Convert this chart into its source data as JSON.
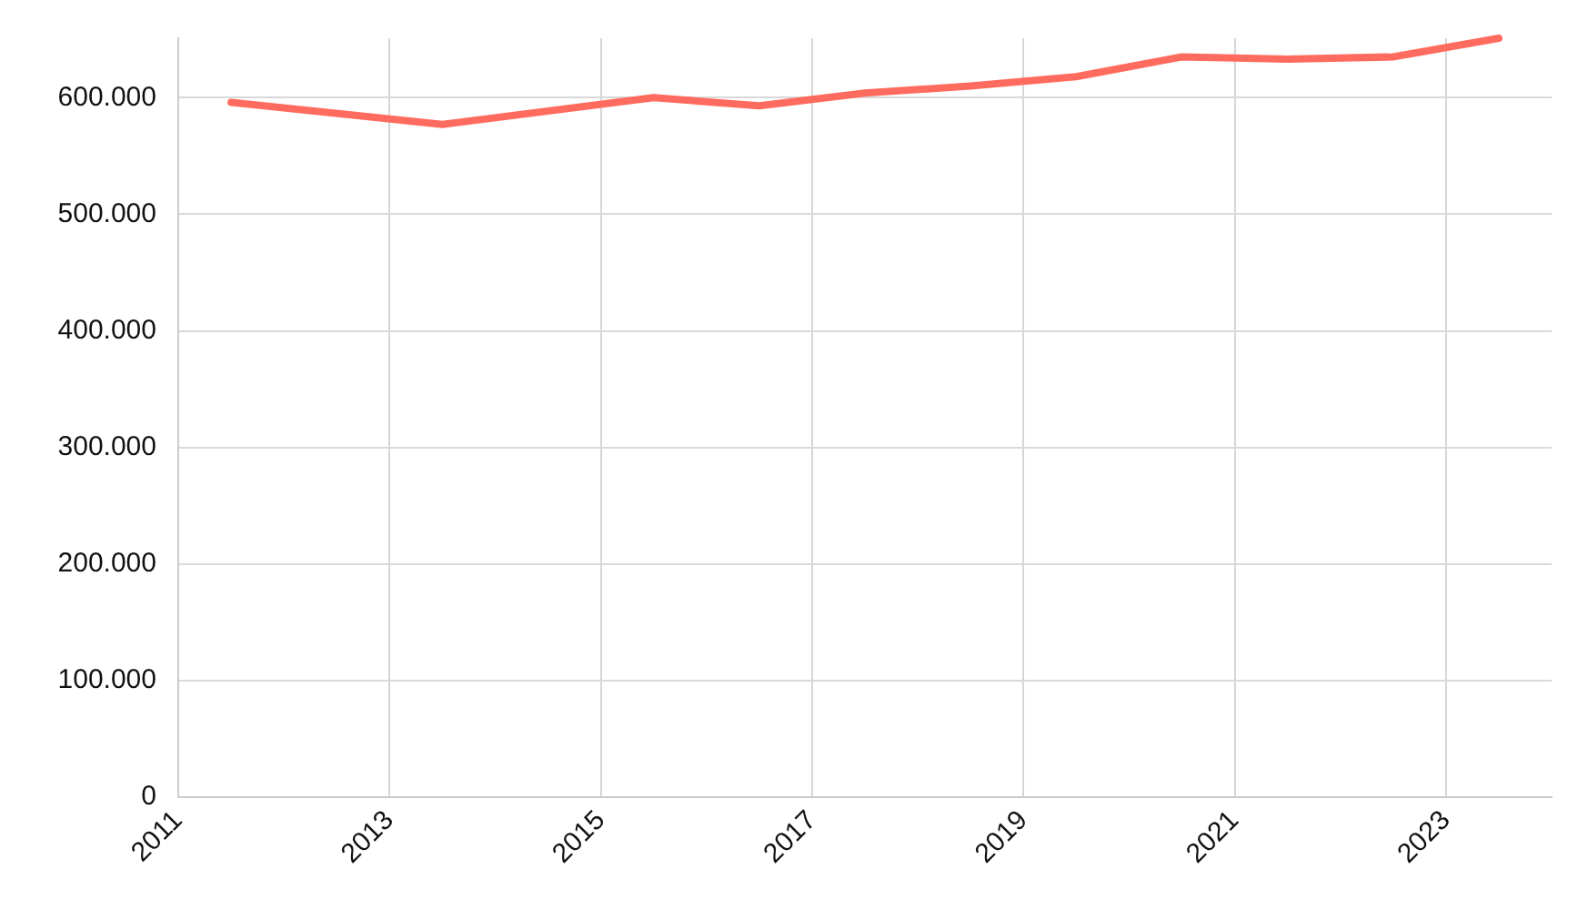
{
  "chart_data": {
    "type": "line",
    "x": [
      2011.5,
      2013.5,
      2015.5,
      2016.5,
      2017.5,
      2018.5,
      2019.5,
      2020.5,
      2021.5,
      2022.5,
      2023.5
    ],
    "series": [
      {
        "color": "#ff6b5e",
        "values": [
          596000,
          577000,
          600000,
          593000,
          604000,
          610000,
          618000,
          635000,
          633000,
          635000,
          651000
        ]
      }
    ],
    "xlim": [
      2011,
      2024
    ],
    "xticks": [
      2011,
      2013,
      2015,
      2017,
      2019,
      2021,
      2023
    ],
    "ylim": [
      0,
      651000
    ],
    "yticks": [
      0,
      {
        "value": 100000,
        "label": "100.000"
      },
      {
        "value": 200000,
        "label": "200.000"
      },
      {
        "value": 300000,
        "label": "300.000"
      },
      {
        "value": 400000,
        "label": "400.000"
      },
      {
        "value": 500000,
        "label": "500.000"
      },
      {
        "value": 600000,
        "label": "600.000"
      }
    ],
    "grid": true,
    "legend": false,
    "marker": "none",
    "line_style": "solid"
  }
}
